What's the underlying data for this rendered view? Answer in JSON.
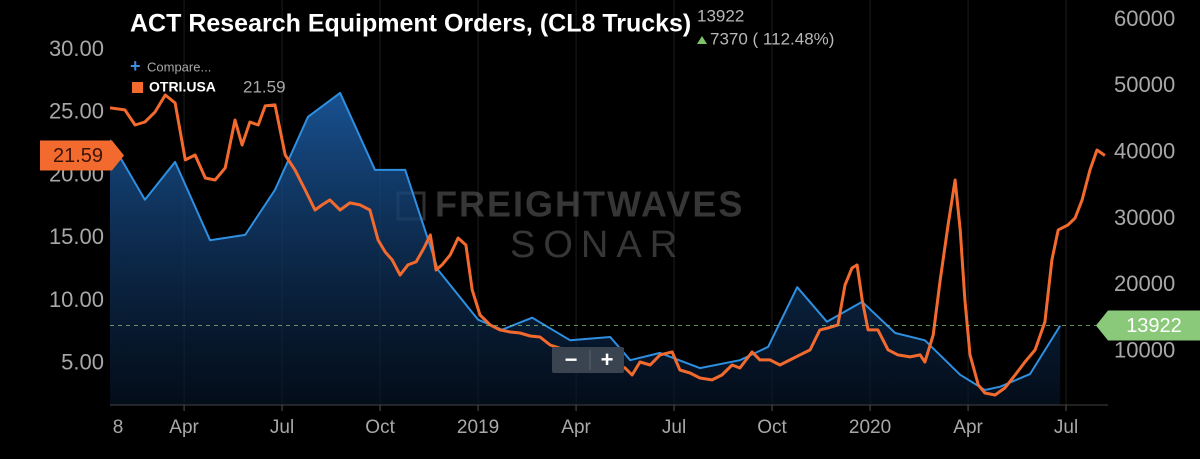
{
  "chart_data": {
    "type": "line",
    "title": "ACT Research Equipment Orders, (CL8 Trucks)",
    "change": "7370 ( 112.48%)",
    "compare": "Compare...",
    "zoom_out": "−",
    "zoom_in": "+",
    "watermark": [
      "FREIGHTWAVES",
      "SONAR"
    ],
    "xlim": [
      2018.061,
      2020.607
    ],
    "xticks": [
      {
        "value": 2018,
        "label": "8"
      },
      {
        "value": 2018.25,
        "label": "Apr"
      },
      {
        "value": 2018.5,
        "label": "Jul"
      },
      {
        "value": 2018.75,
        "label": "Oct"
      },
      2019,
      {
        "value": 2019.25,
        "label": "Apr"
      },
      {
        "value": 2019.5,
        "label": "Jul"
      },
      {
        "value": 2019.75,
        "label": "Oct"
      },
      2020,
      {
        "value": 2020.25,
        "label": "Apr"
      },
      {
        "value": 2020.5,
        "label": "Jul"
      }
    ],
    "ylim": [
      1.71,
      33.98
    ],
    "yticks": [
      {
        "value": 5,
        "label": "5.00"
      },
      {
        "value": 10,
        "label": "10.00"
      },
      {
        "value": 15,
        "label": "15.00"
      },
      {
        "value": 20,
        "label": "20.00"
      },
      {
        "value": 25,
        "label": "25.00"
      },
      {
        "value": 30,
        "label": "30.00"
      }
    ],
    "y2lim": [
      1942,
      63016
    ],
    "y2ticks": [
      10000,
      20000,
      30000,
      40000,
      50000,
      60000
    ],
    "grid": true,
    "series": [
      {
        "name": "OTRI.USA",
        "color": "#f26a2e",
        "axis": "y",
        "x": [
          2018.061,
          2018.099,
          2018.125,
          2018.15,
          2018.176,
          2018.202,
          2018.227,
          2018.253,
          2018.278,
          2018.304,
          2018.329,
          2018.355,
          2018.38,
          2018.398,
          2018.418,
          2018.439,
          2018.457,
          2018.482,
          2018.508,
          2018.533,
          2018.559,
          2018.584,
          2018.602,
          2018.622,
          2018.648,
          2018.673,
          2018.699,
          2018.724,
          2018.745,
          2018.763,
          2018.781,
          2018.801,
          2018.821,
          2018.842,
          2018.862,
          2018.878,
          2018.893,
          2018.908,
          2018.929,
          2018.949,
          2018.969,
          2018.985,
          2019.005,
          2019.031,
          2019.056,
          2019.082,
          2019.107,
          2019.133,
          2019.158,
          2019.184,
          2019.222,
          2019.26,
          2019.291,
          2019.324,
          2019.349,
          2019.375,
          2019.393,
          2019.413,
          2019.439,
          2019.464,
          2019.495,
          2019.515,
          2019.541,
          2019.566,
          2019.597,
          2019.622,
          2019.648,
          2019.668,
          2019.699,
          2019.719,
          2019.745,
          2019.77,
          2019.796,
          2019.821,
          2019.847,
          2019.872,
          2019.893,
          2019.918,
          2019.936,
          2019.954,
          2019.967,
          2019.98,
          2019.995,
          2020.02,
          2020.046,
          2020.071,
          2020.102,
          2020.128,
          2020.14,
          2020.161,
          2020.179,
          2020.199,
          2020.217,
          2020.23,
          2020.242,
          2020.255,
          2020.276,
          2020.293,
          2020.319,
          2020.344,
          2020.37,
          2020.395,
          2020.421,
          2020.446,
          2020.464,
          2020.48,
          2020.505,
          2020.523,
          2020.541,
          2020.561,
          2020.579,
          2020.599
        ],
        "values": [
          25.38,
          25.22,
          24.02,
          24.26,
          25.06,
          26.41,
          25.78,
          21.24,
          21.63,
          19.8,
          19.64,
          20.6,
          24.42,
          22.43,
          24.26,
          24.02,
          25.54,
          25.62,
          21.63,
          20.44,
          18.84,
          17.25,
          17.65,
          18.05,
          17.25,
          17.81,
          17.65,
          17.25,
          14.86,
          13.9,
          13.27,
          12.07,
          12.87,
          13.11,
          14.22,
          15.26,
          12.47,
          12.87,
          13.67,
          15.02,
          14.46,
          10.88,
          8.88,
          8.09,
          7.69,
          7.53,
          7.45,
          7.21,
          7.13,
          6.49,
          6.1,
          5.7,
          4.9,
          4.5,
          4.9,
          4.66,
          4.1,
          5.14,
          4.9,
          5.7,
          5.94,
          4.5,
          4.26,
          3.86,
          3.71,
          4.1,
          4.9,
          4.66,
          5.94,
          5.3,
          5.3,
          4.9,
          5.3,
          5.7,
          6.1,
          7.69,
          7.85,
          8.09,
          11.27,
          12.63,
          12.87,
          10.08,
          7.69,
          7.69,
          6.1,
          5.7,
          5.54,
          5.7,
          5.14,
          7.29,
          11.67,
          16.06,
          19.64,
          15.66,
          10.08,
          5.7,
          3.31,
          2.67,
          2.51,
          3.07,
          4.1,
          5.14,
          6.1,
          8.33,
          13.27,
          15.66,
          16.06,
          16.61,
          18.05,
          20.44,
          22.03,
          21.59
        ]
      },
      {
        "color": "#2f8fe0",
        "axis": "y2",
        "area": true,
        "x": [
          2018.061,
          2018.15,
          2018.227,
          2018.316,
          2018.406,
          2018.482,
          2018.566,
          2018.648,
          2018.737,
          2018.814,
          2018.898,
          2019.0,
          2019.061,
          2019.138,
          2019.235,
          2019.337,
          2019.388,
          2019.464,
          2019.566,
          2019.668,
          2019.74,
          2019.814,
          2019.89,
          2019.98,
          2020.064,
          2020.14,
          2020.23,
          2020.293,
          2020.332,
          2020.408,
          2020.485
        ],
        "values": [
          41900,
          32900,
          38600,
          26800,
          27600,
          34400,
          45400,
          49000,
          37400,
          37400,
          22300,
          14800,
          13300,
          15100,
          11700,
          12200,
          8700,
          9800,
          7500,
          8700,
          10700,
          19700,
          14500,
          17500,
          12800,
          11700,
          6500,
          4200,
          4700,
          6600,
          13922
        ]
      }
    ]
  }
}
